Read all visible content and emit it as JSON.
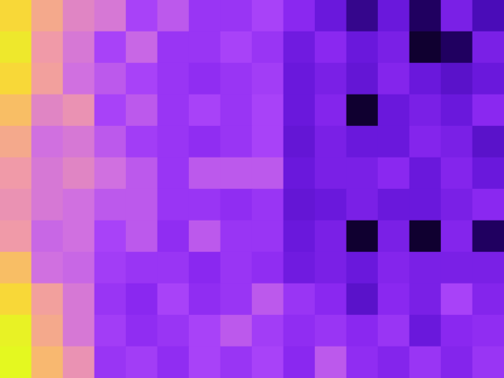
{
  "chart_data": {
    "type": "heatmap",
    "cells": [
      [
        0.9,
        0.75,
        0.65,
        0.62,
        0.5,
        0.55,
        0.45,
        0.45,
        0.5,
        0.4,
        0.3,
        0.15,
        0.3,
        0.1,
        0.35,
        0.2
      ],
      [
        0.95,
        0.7,
        0.62,
        0.5,
        0.58,
        0.45,
        0.45,
        0.5,
        0.45,
        0.32,
        0.4,
        0.3,
        0.35,
        0.05,
        0.1,
        0.35
      ],
      [
        0.9,
        0.72,
        0.6,
        0.55,
        0.5,
        0.45,
        0.42,
        0.45,
        0.48,
        0.3,
        0.35,
        0.28,
        0.38,
        0.3,
        0.25,
        0.3
      ],
      [
        0.82,
        0.65,
        0.68,
        0.5,
        0.55,
        0.45,
        0.5,
        0.45,
        0.5,
        0.3,
        0.38,
        0.05,
        0.3,
        0.35,
        0.3,
        0.4
      ],
      [
        0.75,
        0.6,
        0.62,
        0.55,
        0.48,
        0.45,
        0.42,
        0.45,
        0.5,
        0.28,
        0.35,
        0.3,
        0.3,
        0.38,
        0.35,
        0.25
      ],
      [
        0.7,
        0.62,
        0.65,
        0.6,
        0.55,
        0.45,
        0.55,
        0.55,
        0.55,
        0.3,
        0.35,
        0.35,
        0.4,
        0.3,
        0.38,
        0.3
      ],
      [
        0.68,
        0.62,
        0.6,
        0.55,
        0.55,
        0.45,
        0.45,
        0.42,
        0.45,
        0.28,
        0.3,
        0.35,
        0.3,
        0.3,
        0.35,
        0.4
      ],
      [
        0.7,
        0.58,
        0.6,
        0.5,
        0.55,
        0.42,
        0.55,
        0.45,
        0.45,
        0.3,
        0.35,
        0.05,
        0.35,
        0.05,
        0.38,
        0.1
      ],
      [
        0.82,
        0.6,
        0.58,
        0.48,
        0.45,
        0.45,
        0.4,
        0.45,
        0.42,
        0.32,
        0.35,
        0.3,
        0.38,
        0.35,
        0.35,
        0.35
      ],
      [
        0.9,
        0.72,
        0.62,
        0.45,
        0.4,
        0.5,
        0.42,
        0.45,
        0.55,
        0.45,
        0.4,
        0.25,
        0.4,
        0.35,
        0.5,
        0.38
      ],
      [
        0.98,
        0.75,
        0.62,
        0.48,
        0.42,
        0.45,
        0.5,
        0.55,
        0.48,
        0.42,
        0.45,
        0.4,
        0.45,
        0.3,
        0.4,
        0.42
      ],
      [
        1.0,
        0.8,
        0.68,
        0.45,
        0.48,
        0.42,
        0.5,
        0.45,
        0.5,
        0.4,
        0.55,
        0.42,
        0.38,
        0.45,
        0.38,
        0.45
      ]
    ],
    "zlim": [
      0,
      1
    ],
    "tick_labels": false,
    "grid": false
  }
}
